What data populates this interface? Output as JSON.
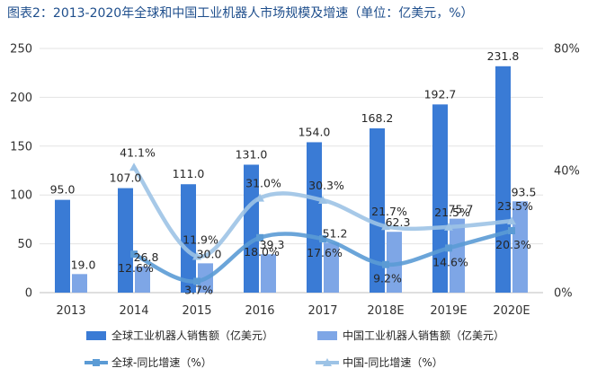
{
  "chart_data": {
    "type": "bar",
    "title": "图表2：2013-2020年全球和中国工业机器人市场规模及增速（单位：亿美元，%）",
    "categories": [
      "2013",
      "2014",
      "2015",
      "2016",
      "2017",
      "2018E",
      "2019E",
      "2020E"
    ],
    "y_left": {
      "min": 0,
      "max": 250,
      "ticks": [
        "0",
        "50",
        "100",
        "150",
        "200",
        "250"
      ]
    },
    "y_right": {
      "min": 0,
      "max": 80,
      "ticks": [
        "0%",
        "40%",
        "80%"
      ],
      "unit": "%"
    },
    "grid": true,
    "legend_position": "bottom",
    "bar_series": [
      {
        "name": "全球工业机器人销售额（亿美元）",
        "color": "#3a7bd5",
        "values": [
          95.0,
          107.0,
          111.0,
          131.0,
          154.0,
          168.2,
          192.7,
          231.8
        ],
        "labels": [
          "95.0",
          "107.0",
          "111.0",
          "131.0",
          "154.0",
          "168.2",
          "192.7",
          "231.8"
        ]
      },
      {
        "name": "中国工业机器人销售额（亿美元）",
        "color": "#7ea6e6",
        "values": [
          19.0,
          26.8,
          30.0,
          39.3,
          51.2,
          62.3,
          75.7,
          93.5
        ],
        "labels": [
          "19.0",
          "26.8",
          "30.0",
          "39.3",
          "51.2",
          "62.3",
          "75.7",
          "93.5"
        ]
      }
    ],
    "line_series": [
      {
        "name": "全球-同比增速（%）",
        "color": "#5b9bd5",
        "marker": "square",
        "values": [
          null,
          12.6,
          3.7,
          18.0,
          17.6,
          9.2,
          14.6,
          20.3
        ],
        "labels": [
          "",
          "12.6%",
          "3.7%",
          "18.0%",
          "17.6%",
          "9.2%",
          "14.6%",
          "20.3%"
        ]
      },
      {
        "name": "中国-同比增速（%）",
        "color": "#9dc3e6",
        "marker": "triangle",
        "values": [
          null,
          41.1,
          11.9,
          31.0,
          30.3,
          21.7,
          21.5,
          23.5
        ],
        "labels": [
          "",
          "41.1%",
          "11.9%",
          "31.0%",
          "30.3%",
          "21.7%",
          "21.5%",
          "23.5%"
        ]
      }
    ]
  }
}
